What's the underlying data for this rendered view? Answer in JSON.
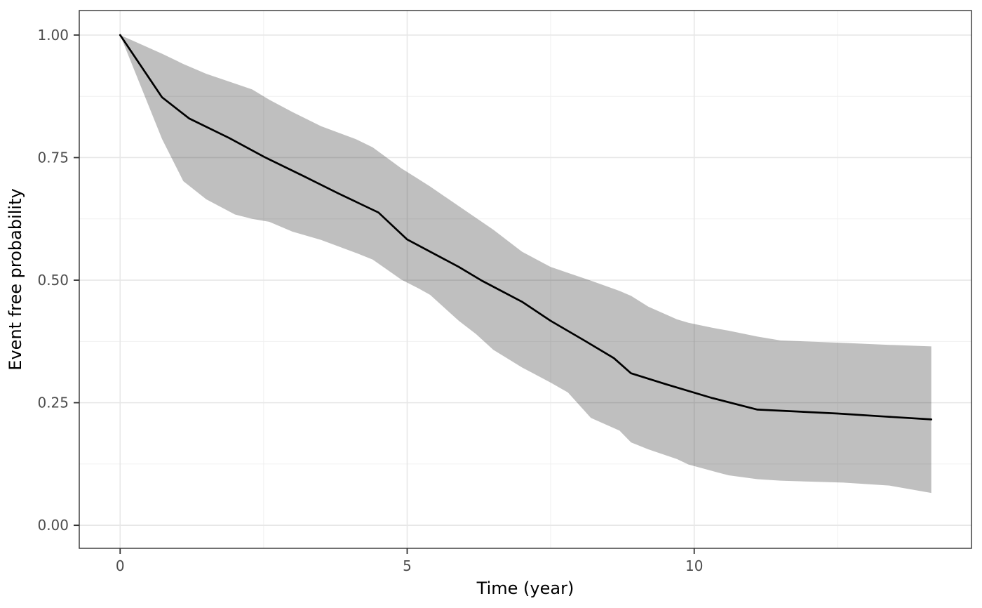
{
  "figure": {
    "background": "#FFFFFF",
    "panel_background": "#FFFFFF",
    "panel_border_color": "#333333",
    "grid_major_color": "#E7E7E7",
    "grid_minor_color": "#F0F0F0",
    "tick_mark_color": "#333333",
    "tick_label_color": "#4D4D4D",
    "axis_title_color": "#000000",
    "curve_color": "#000000",
    "band_fill": "#000000",
    "band_opacity": 0.25
  },
  "chart_data": {
    "type": "line",
    "title": "",
    "xlabel": "Time (year)",
    "ylabel": "Event free probability",
    "xlim": [
      -0.712,
      14.83
    ],
    "ylim": [
      -0.047,
      1.05
    ],
    "grid": "major and minor, light gray on white, theme_bw style",
    "legend": "none",
    "x_tick_values": [
      0,
      5,
      10
    ],
    "x_tick_labels": [
      "0",
      "5",
      "10"
    ],
    "x_minor_tick_values": [
      2.5,
      7.5,
      12.5
    ],
    "y_tick_values": [
      0.0,
      0.25,
      0.5,
      0.75,
      1.0
    ],
    "y_tick_labels": [
      "0.00",
      "0.25",
      "0.50",
      "0.75",
      "1.00"
    ],
    "y_minor_tick_values": [
      0.125,
      0.375,
      0.625,
      0.875
    ],
    "series": [
      {
        "name": "event-free-probability-estimate",
        "color": "#000000",
        "width": 2.7,
        "x": [
          0,
          0.73,
          1.2,
          1.9,
          2.5,
          3.2,
          3.8,
          4.5,
          5.0,
          5.9,
          6.3,
          7.0,
          7.5,
          8.1,
          8.6,
          8.9,
          9.5,
          10.3,
          11.1,
          12.5,
          13.3,
          14.13
        ],
        "y": [
          1.0,
          0.873,
          0.83,
          0.79,
          0.752,
          0.712,
          0.677,
          0.638,
          0.583,
          0.527,
          0.499,
          0.456,
          0.417,
          0.376,
          0.341,
          0.31,
          0.288,
          0.26,
          0.236,
          0.228,
          0.222,
          0.216
        ]
      }
    ],
    "confidence_band": {
      "name": "confidence-interval-ribbon",
      "fill": "#000000",
      "opacity": 0.25,
      "x": [
        0,
        0.73,
        1.1,
        1.5,
        2.0,
        2.3,
        2.6,
        3.0,
        3.5,
        4.1,
        4.4,
        4.9,
        5.2,
        5.4,
        5.9,
        6.2,
        6.5,
        7.0,
        7.5,
        7.8,
        8.2,
        8.7,
        8.9,
        9.2,
        9.7,
        9.9,
        10.4,
        10.6,
        11.1,
        11.5,
        12.6,
        13.4,
        14.13
      ],
      "upper": [
        1.0,
        0.962,
        0.941,
        0.921,
        0.901,
        0.889,
        0.868,
        0.843,
        0.814,
        0.788,
        0.771,
        0.728,
        0.706,
        0.691,
        0.651,
        0.627,
        0.603,
        0.558,
        0.527,
        0.515,
        0.499,
        0.478,
        0.468,
        0.446,
        0.42,
        0.413,
        0.401,
        0.397,
        0.385,
        0.377,
        0.372,
        0.368,
        0.365
      ],
      "lower": [
        1.0,
        0.788,
        0.702,
        0.665,
        0.634,
        0.625,
        0.619,
        0.599,
        0.582,
        0.556,
        0.542,
        0.501,
        0.483,
        0.47,
        0.417,
        0.39,
        0.358,
        0.322,
        0.291,
        0.271,
        0.219,
        0.193,
        0.169,
        0.155,
        0.135,
        0.124,
        0.108,
        0.102,
        0.094,
        0.091,
        0.087,
        0.081,
        0.066
      ]
    }
  }
}
